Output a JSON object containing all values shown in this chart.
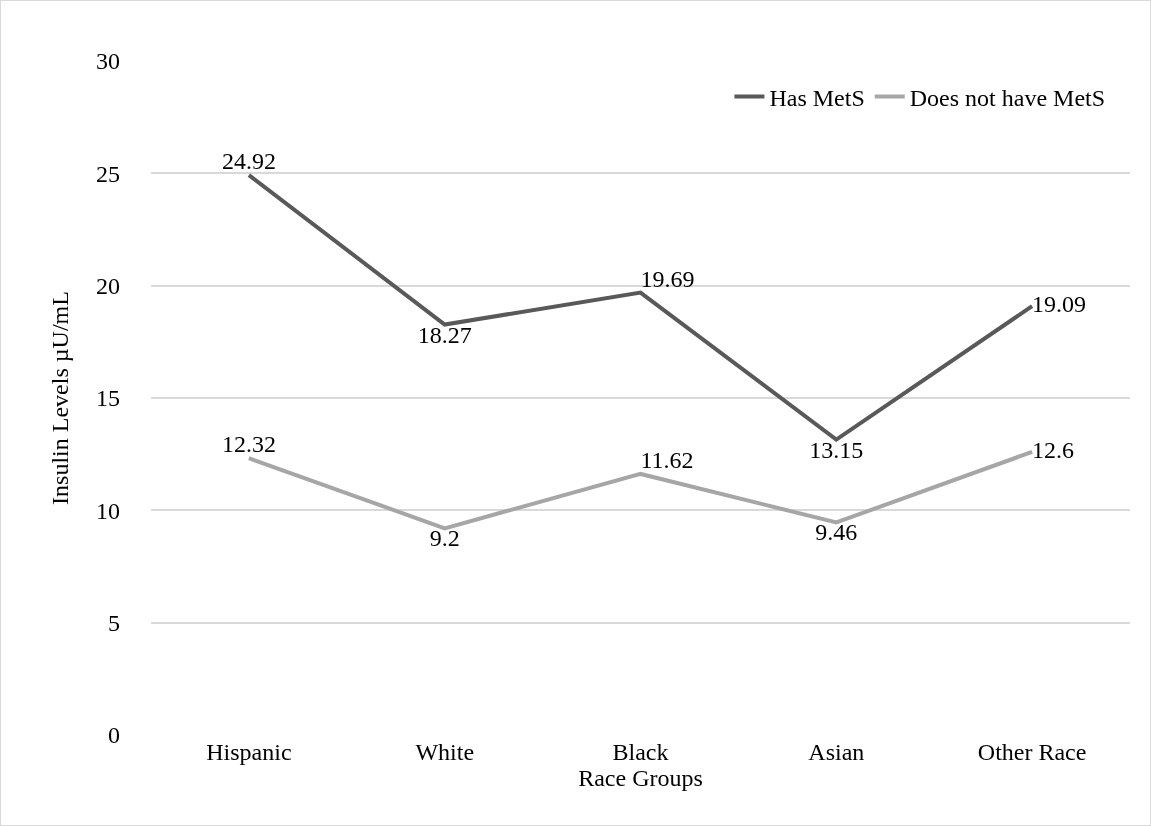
{
  "chart_data": {
    "type": "line",
    "xlabel": "Race Groups",
    "ylabel": "Insulin Levels µU/mL",
    "categories": [
      "Hispanic",
      "White",
      "Black",
      "Asian",
      "Other Race"
    ],
    "series": [
      {
        "name": "Has MetS",
        "color": "#595959",
        "values": [
          24.92,
          18.27,
          19.69,
          13.15,
          19.09
        ]
      },
      {
        "name": "Does not have MetS",
        "color": "#a6a6a6",
        "values": [
          12.32,
          9.2,
          11.62,
          9.46,
          12.6
        ]
      }
    ],
    "ylim": [
      0,
      30
    ],
    "yticks": [
      0,
      5,
      10,
      15,
      20,
      25,
      30
    ],
    "grid": "y",
    "legend": "top right",
    "marker": "none",
    "line_style": "solid",
    "data_labels": true
  }
}
